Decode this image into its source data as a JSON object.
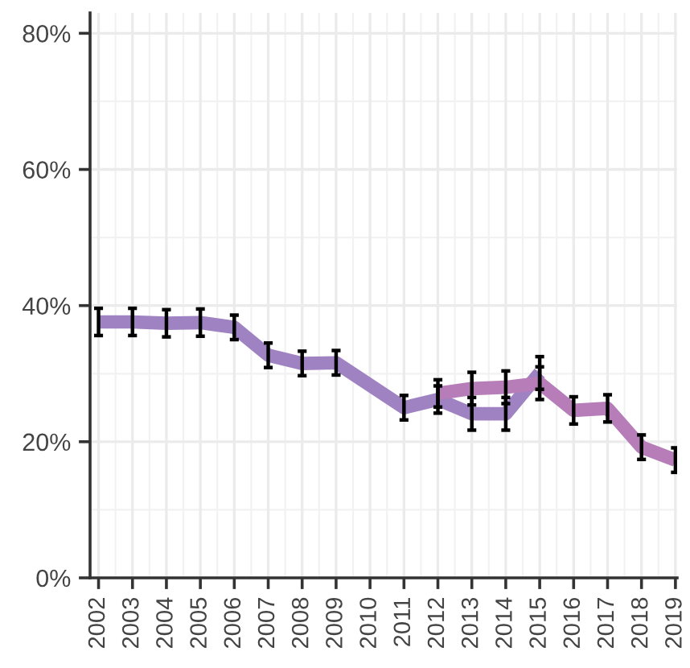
{
  "chart_data": {
    "type": "line",
    "xlim": [
      2001.75,
      2019.05
    ],
    "xticks": [
      2002,
      2003,
      2004,
      2005,
      2006,
      2007,
      2008,
      2009,
      2010,
      2011,
      2012,
      2013,
      2014,
      2015,
      2016,
      2017,
      2018,
      2019
    ],
    "ylim": [
      0,
      83
    ],
    "yticks": [
      {
        "value": 0,
        "label": "0%"
      },
      {
        "value": 20,
        "label": "20%"
      },
      {
        "value": 40,
        "label": "40%"
      },
      {
        "value": 60,
        "label": "60%"
      },
      {
        "value": 80,
        "label": "80%"
      }
    ],
    "grid": true,
    "marker": "none",
    "line_style": "solid",
    "series": [
      {
        "color": "#9f82c1",
        "x": [
          2002,
          2003,
          2004,
          2005,
          2006,
          2007,
          2008,
          2009,
          2011,
          2012,
          2013,
          2014,
          2015
        ],
        "values": [
          37.6,
          37.6,
          37.4,
          37.5,
          36.8,
          32.7,
          31.5,
          31.6,
          25.0,
          26.2,
          24.1,
          24.1,
          30.1
        ],
        "errors": [
          2,
          2,
          2,
          2,
          1.8,
          1.8,
          1.8,
          1.8,
          1.8,
          2,
          2.4,
          2.4,
          2.4
        ]
      },
      {
        "color": "#b67db8",
        "x": [
          2012,
          2013,
          2014,
          2015,
          2016,
          2017,
          2018,
          2019
        ],
        "values": [
          27.1,
          27.8,
          28.0,
          28.6,
          24.6,
          24.9,
          19.2,
          17.3
        ],
        "errors": [
          2,
          2.4,
          2.4,
          2.4,
          2,
          2,
          1.8,
          1.8
        ]
      }
    ]
  }
}
